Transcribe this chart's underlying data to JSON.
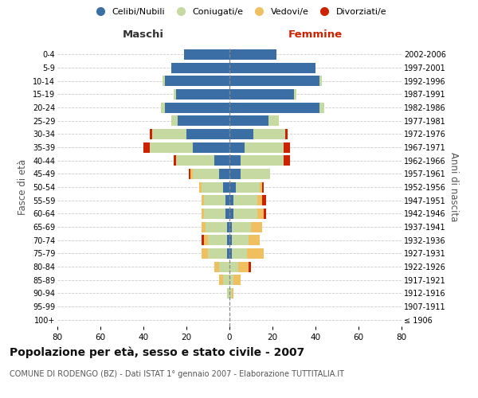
{
  "age_groups": [
    "100+",
    "95-99",
    "90-94",
    "85-89",
    "80-84",
    "75-79",
    "70-74",
    "65-69",
    "60-64",
    "55-59",
    "50-54",
    "45-49",
    "40-44",
    "35-39",
    "30-34",
    "25-29",
    "20-24",
    "15-19",
    "10-14",
    "5-9",
    "0-4"
  ],
  "birth_years": [
    "≤ 1906",
    "1907-1911",
    "1912-1916",
    "1917-1921",
    "1922-1926",
    "1927-1931",
    "1932-1936",
    "1937-1941",
    "1942-1946",
    "1947-1951",
    "1952-1956",
    "1957-1961",
    "1962-1966",
    "1967-1971",
    "1972-1976",
    "1977-1981",
    "1982-1986",
    "1987-1991",
    "1992-1996",
    "1997-2001",
    "2002-2006"
  ],
  "males": {
    "celibi": [
      0,
      0,
      0,
      0,
      0,
      1,
      1,
      1,
      2,
      2,
      3,
      5,
      7,
      17,
      20,
      24,
      30,
      25,
      30,
      27,
      21
    ],
    "coniugati": [
      0,
      0,
      1,
      3,
      5,
      9,
      9,
      10,
      10,
      10,
      10,
      12,
      18,
      20,
      16,
      3,
      2,
      1,
      1,
      0,
      0
    ],
    "vedovi": [
      0,
      0,
      0,
      2,
      2,
      3,
      2,
      2,
      1,
      1,
      1,
      1,
      0,
      0,
      0,
      0,
      0,
      0,
      0,
      0,
      0
    ],
    "divorziati": [
      0,
      0,
      0,
      0,
      0,
      0,
      1,
      0,
      0,
      0,
      0,
      1,
      1,
      3,
      1,
      0,
      0,
      0,
      0,
      0,
      0
    ]
  },
  "females": {
    "nubili": [
      0,
      0,
      0,
      0,
      0,
      1,
      1,
      1,
      2,
      2,
      3,
      5,
      5,
      7,
      11,
      18,
      42,
      30,
      42,
      40,
      22
    ],
    "coniugate": [
      0,
      0,
      1,
      2,
      4,
      7,
      8,
      9,
      11,
      11,
      11,
      14,
      20,
      18,
      15,
      5,
      2,
      1,
      1,
      0,
      0
    ],
    "vedove": [
      0,
      0,
      1,
      3,
      5,
      8,
      5,
      5,
      3,
      2,
      1,
      0,
      0,
      0,
      0,
      0,
      0,
      0,
      0,
      0,
      0
    ],
    "divorziate": [
      0,
      0,
      0,
      0,
      1,
      0,
      0,
      0,
      1,
      2,
      1,
      0,
      3,
      3,
      1,
      0,
      0,
      0,
      0,
      0,
      0
    ]
  },
  "colors": {
    "celibi": "#3b6ea5",
    "coniugati": "#c5d9a0",
    "vedovi": "#f0c060",
    "divorziati": "#cc2200"
  },
  "xlim": 80,
  "title": "Popolazione per età, sesso e stato civile - 2007",
  "subtitle": "COMUNE DI RODENGO (BZ) - Dati ISTAT 1° gennaio 2007 - Elaborazione TUTTITALIA.IT",
  "ylabel_left": "Fasce di età",
  "ylabel_right": "Anni di nascita",
  "xlabel_left": "Maschi",
  "xlabel_right": "Femmine",
  "legend_labels": [
    "Celibi/Nubili",
    "Coniugati/e",
    "Vedovi/e",
    "Divorziati/e"
  ],
  "background_color": "#ffffff",
  "grid_color": "#cccccc",
  "title_fontsize": 10,
  "subtitle_fontsize": 7
}
